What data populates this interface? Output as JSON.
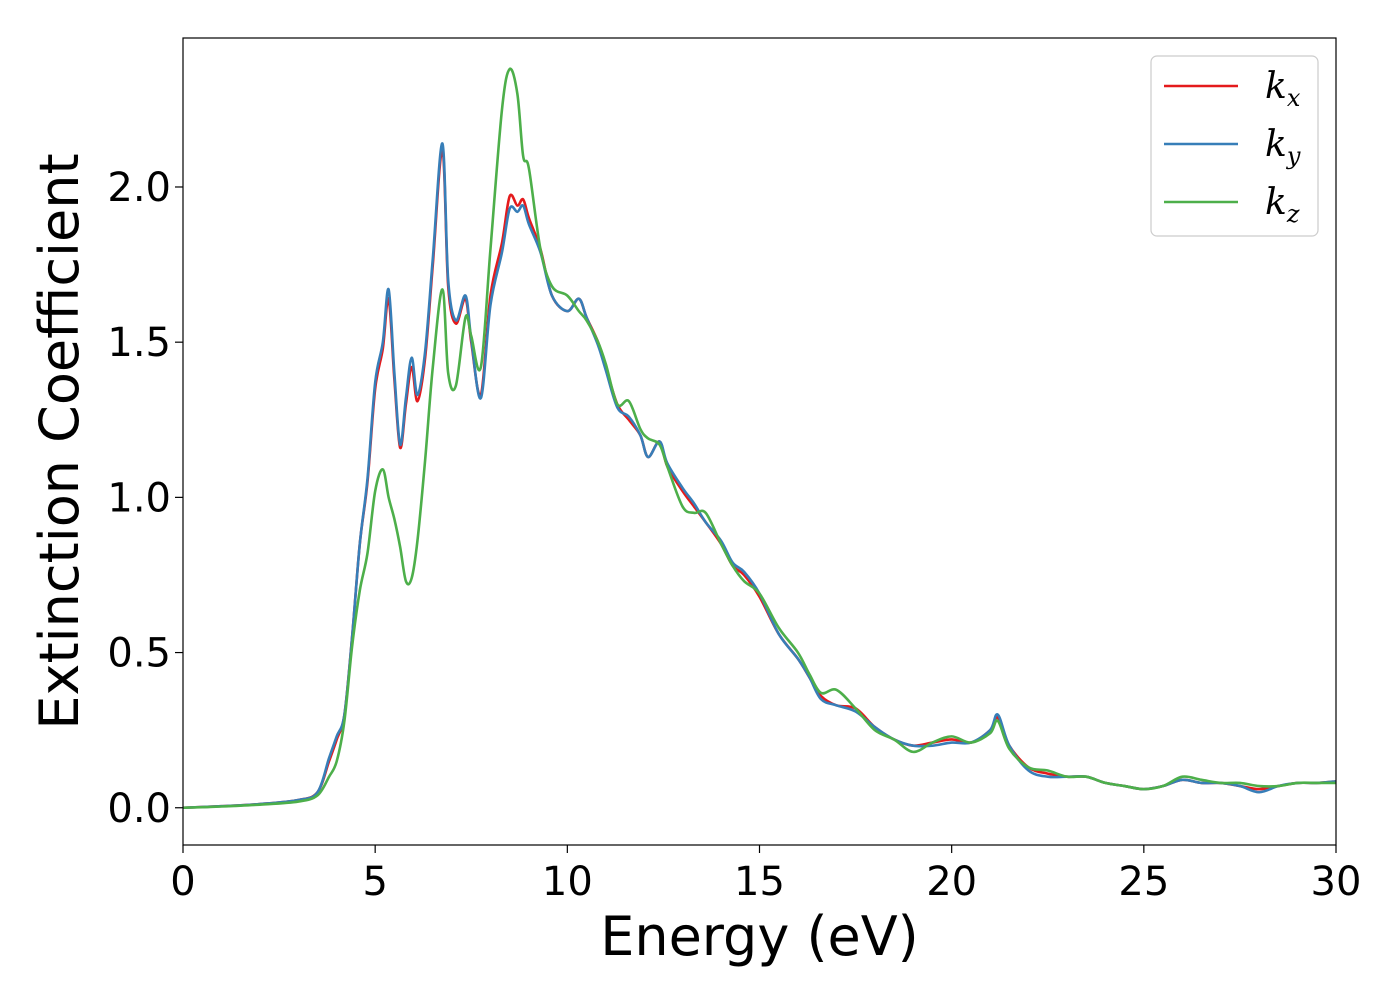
{
  "chart_data": {
    "type": "line",
    "xlabel": "Energy (eV)",
    "ylabel": "Extinction Coefficient",
    "xlim": [
      0,
      30
    ],
    "ylim": [
      -0.12,
      2.48
    ],
    "xticks": [
      0,
      5,
      10,
      15,
      20,
      25,
      30
    ],
    "yticks": [
      0.0,
      0.5,
      1.0,
      1.5,
      2.0
    ],
    "xtick_labels": [
      "0",
      "5",
      "10",
      "15",
      "20",
      "25",
      "30"
    ],
    "ytick_labels": [
      "0.0",
      "0.5",
      "1.0",
      "1.5",
      "2.0"
    ],
    "grid": false,
    "legend_position": "top-right",
    "series": [
      {
        "name": "k_x",
        "base": "k",
        "sub": "x",
        "color": "#e41a1c",
        "x": [
          0,
          1,
          2,
          3,
          3.5,
          3.8,
          4.0,
          4.2,
          4.4,
          4.6,
          4.8,
          5.0,
          5.2,
          5.35,
          5.5,
          5.65,
          5.8,
          5.95,
          6.1,
          6.3,
          6.5,
          6.75,
          6.9,
          7.1,
          7.35,
          7.5,
          7.75,
          8.0,
          8.3,
          8.5,
          8.7,
          8.85,
          9.0,
          9.3,
          9.6,
          10.0,
          10.3,
          10.5,
          10.8,
          11.0,
          11.3,
          11.6,
          11.9,
          12.1,
          12.4,
          12.6,
          13.0,
          13.3,
          13.6,
          14.0,
          14.3,
          14.6,
          15.0,
          15.5,
          16.0,
          16.3,
          16.6,
          17.0,
          17.5,
          18.0,
          18.5,
          19.0,
          19.5,
          20.0,
          20.5,
          21.0,
          21.2,
          21.5,
          22.0,
          22.5,
          23.0,
          23.5,
          24.0,
          24.5,
          25.0,
          25.5,
          26.0,
          26.5,
          27.0,
          27.5,
          28.0,
          28.5,
          29.0,
          29.5,
          30.0
        ],
        "values": [
          0.0,
          0.005,
          0.012,
          0.025,
          0.05,
          0.15,
          0.22,
          0.3,
          0.55,
          0.85,
          1.05,
          1.35,
          1.48,
          1.64,
          1.38,
          1.16,
          1.3,
          1.42,
          1.31,
          1.45,
          1.75,
          2.12,
          1.68,
          1.56,
          1.64,
          1.5,
          1.33,
          1.65,
          1.82,
          1.97,
          1.94,
          1.96,
          1.9,
          1.8,
          1.65,
          1.6,
          1.64,
          1.58,
          1.5,
          1.42,
          1.3,
          1.25,
          1.2,
          1.13,
          1.18,
          1.1,
          1.02,
          0.97,
          0.92,
          0.85,
          0.78,
          0.75,
          0.68,
          0.56,
          0.48,
          0.42,
          0.36,
          0.33,
          0.32,
          0.26,
          0.22,
          0.2,
          0.21,
          0.22,
          0.21,
          0.25,
          0.29,
          0.2,
          0.13,
          0.11,
          0.1,
          0.1,
          0.08,
          0.07,
          0.06,
          0.07,
          0.09,
          0.08,
          0.08,
          0.07,
          0.06,
          0.07,
          0.08,
          0.08,
          0.085
        ]
      },
      {
        "name": "k_y",
        "base": "k",
        "sub": "y",
        "color": "#377eb8",
        "x": [
          0,
          1,
          2,
          3,
          3.5,
          3.8,
          4.0,
          4.2,
          4.4,
          4.6,
          4.8,
          5.0,
          5.2,
          5.35,
          5.5,
          5.65,
          5.8,
          5.95,
          6.1,
          6.3,
          6.5,
          6.75,
          6.9,
          7.1,
          7.35,
          7.5,
          7.75,
          8.0,
          8.3,
          8.5,
          8.7,
          8.85,
          9.0,
          9.3,
          9.6,
          10.0,
          10.3,
          10.5,
          10.8,
          11.0,
          11.3,
          11.6,
          11.9,
          12.1,
          12.4,
          12.6,
          13.0,
          13.3,
          13.6,
          14.0,
          14.3,
          14.6,
          15.0,
          15.5,
          16.0,
          16.3,
          16.6,
          17.0,
          17.5,
          18.0,
          18.5,
          19.0,
          19.5,
          20.0,
          20.5,
          21.0,
          21.2,
          21.5,
          22.0,
          22.5,
          23.0,
          23.5,
          24.0,
          24.5,
          25.0,
          25.5,
          26.0,
          26.5,
          27.0,
          27.5,
          28.0,
          28.5,
          29.0,
          29.5,
          30.0
        ],
        "values": [
          0.0,
          0.005,
          0.012,
          0.025,
          0.05,
          0.16,
          0.23,
          0.3,
          0.55,
          0.85,
          1.06,
          1.37,
          1.5,
          1.67,
          1.4,
          1.17,
          1.32,
          1.45,
          1.33,
          1.47,
          1.77,
          2.14,
          1.7,
          1.57,
          1.65,
          1.51,
          1.32,
          1.62,
          1.79,
          1.93,
          1.92,
          1.94,
          1.88,
          1.79,
          1.65,
          1.6,
          1.64,
          1.58,
          1.49,
          1.41,
          1.29,
          1.26,
          1.2,
          1.13,
          1.18,
          1.11,
          1.03,
          0.98,
          0.92,
          0.86,
          0.79,
          0.76,
          0.69,
          0.56,
          0.48,
          0.42,
          0.35,
          0.33,
          0.31,
          0.26,
          0.22,
          0.2,
          0.2,
          0.21,
          0.21,
          0.25,
          0.3,
          0.2,
          0.12,
          0.1,
          0.1,
          0.1,
          0.08,
          0.07,
          0.06,
          0.07,
          0.09,
          0.08,
          0.08,
          0.07,
          0.05,
          0.07,
          0.08,
          0.08,
          0.085
        ]
      },
      {
        "name": "k_z",
        "base": "k",
        "sub": "z",
        "color": "#4daf4a",
        "x": [
          0,
          1,
          2,
          3,
          3.5,
          3.8,
          4.0,
          4.2,
          4.4,
          4.6,
          4.8,
          5.0,
          5.2,
          5.35,
          5.5,
          5.65,
          5.8,
          5.95,
          6.1,
          6.3,
          6.5,
          6.75,
          6.9,
          7.1,
          7.35,
          7.5,
          7.75,
          8.0,
          8.3,
          8.5,
          8.7,
          8.85,
          9.0,
          9.3,
          9.6,
          10.0,
          10.3,
          10.5,
          10.8,
          11.0,
          11.3,
          11.6,
          11.9,
          12.1,
          12.4,
          12.6,
          13.0,
          13.3,
          13.6,
          14.0,
          14.3,
          14.6,
          15.0,
          15.5,
          16.0,
          16.3,
          16.6,
          17.0,
          17.5,
          18.0,
          18.5,
          19.0,
          19.5,
          20.0,
          20.5,
          21.0,
          21.2,
          21.5,
          22.0,
          22.5,
          23.0,
          23.5,
          24.0,
          24.5,
          25.0,
          25.5,
          26.0,
          26.5,
          27.0,
          27.5,
          28.0,
          28.5,
          29.0,
          29.5,
          30.0
        ],
        "values": [
          0.0,
          0.004,
          0.01,
          0.02,
          0.04,
          0.1,
          0.15,
          0.28,
          0.52,
          0.7,
          0.82,
          1.02,
          1.09,
          1.0,
          0.93,
          0.84,
          0.73,
          0.74,
          0.86,
          1.12,
          1.42,
          1.67,
          1.4,
          1.36,
          1.58,
          1.52,
          1.42,
          1.8,
          2.25,
          2.38,
          2.3,
          2.1,
          2.06,
          1.8,
          1.68,
          1.65,
          1.6,
          1.57,
          1.5,
          1.43,
          1.3,
          1.31,
          1.22,
          1.19,
          1.17,
          1.1,
          0.97,
          0.95,
          0.95,
          0.85,
          0.78,
          0.73,
          0.69,
          0.58,
          0.5,
          0.43,
          0.37,
          0.38,
          0.32,
          0.25,
          0.22,
          0.18,
          0.21,
          0.23,
          0.21,
          0.24,
          0.28,
          0.19,
          0.13,
          0.12,
          0.1,
          0.1,
          0.08,
          0.07,
          0.06,
          0.07,
          0.1,
          0.09,
          0.08,
          0.08,
          0.07,
          0.07,
          0.08,
          0.08,
          0.08
        ]
      }
    ]
  }
}
